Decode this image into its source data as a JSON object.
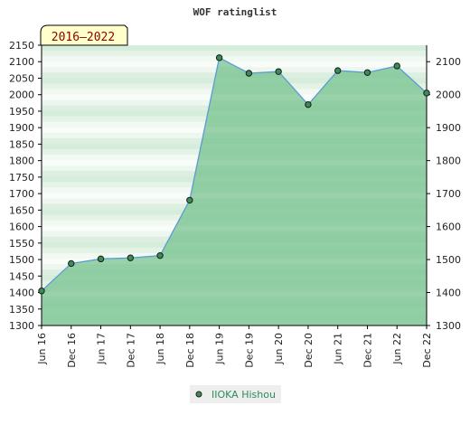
{
  "chart_data": {
    "type": "area",
    "title": "WOF ratinglist",
    "period_label": "2016–2022",
    "x_labels": [
      "Jun 16",
      "Dec 16",
      "Jun 17",
      "Dec 17",
      "Jun 18",
      "Dec 18",
      "Jun 19",
      "Dec 19",
      "Jun 20",
      "Dec 20",
      "Jun 21",
      "Dec 21",
      "Jun 22",
      "Dec 22"
    ],
    "ylim": [
      1300,
      2150
    ],
    "y_ticks_left": [
      1300,
      1350,
      1400,
      1450,
      1500,
      1550,
      1600,
      1650,
      1700,
      1750,
      1800,
      1850,
      1900,
      1950,
      2000,
      2050,
      2100,
      2150
    ],
    "y_ticks_right": [
      1300,
      1400,
      1500,
      1600,
      1700,
      1800,
      1900,
      2000,
      2100
    ],
    "series": [
      {
        "name": "IIOKA Hishou",
        "values": [
          1405,
          1488,
          1502,
          1505,
          1512,
          1680,
          2112,
          2065,
          2070,
          1970,
          2073,
          2067,
          2087,
          2005
        ]
      }
    ],
    "legend_position": "bottom-center",
    "colors": {
      "line": "#5b9bd5",
      "area": "#7cc492",
      "marker": "#3c8c5a",
      "period_box": "#ffffcc",
      "legend_box": "#eeeeee"
    }
  }
}
